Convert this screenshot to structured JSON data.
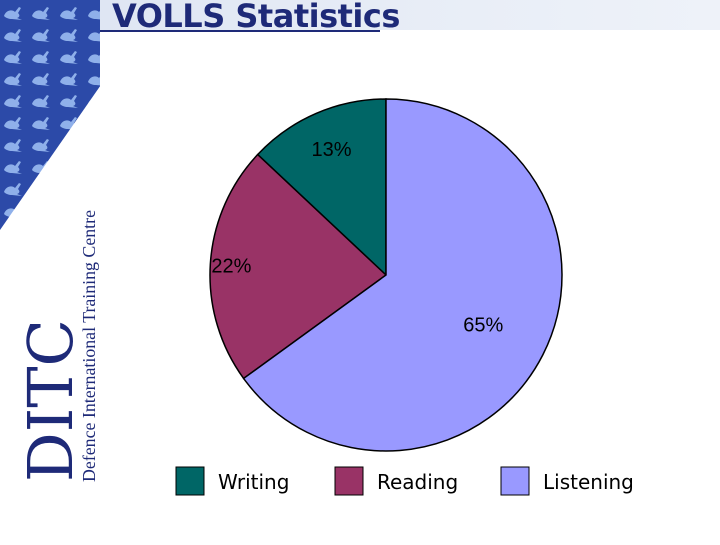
{
  "header": {
    "title": "VOLLS Statistics"
  },
  "branding": {
    "logo_text": "DITC",
    "logo_subtitle": "Defence International Training Centre",
    "logo_icon": "kangaroo-pattern-icon"
  },
  "colors": {
    "title": "#1e2a78",
    "sidebar_pattern_bg": "#2c4aa8",
    "sidebar_pattern_fg": "#8fb0ea"
  },
  "chart_data": {
    "type": "pie",
    "title": "",
    "categories": [
      "Writing",
      "Reading",
      "Listening"
    ],
    "values": [
      13,
      22,
      65
    ],
    "data_labels": [
      "13%",
      "22%",
      "65%"
    ],
    "colors": [
      "#006666",
      "#993366",
      "#9999ff"
    ],
    "start_angle_deg": 0,
    "direction": "counterclockwise",
    "legend_position": "bottom"
  }
}
